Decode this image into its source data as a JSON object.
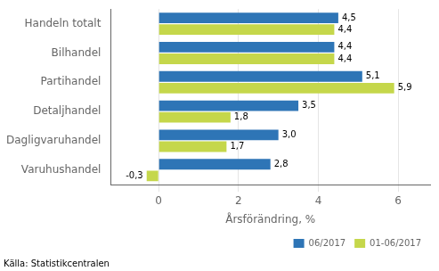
{
  "chart_data": {
    "type": "bar",
    "orientation": "horizontal",
    "categories": [
      "Varuhushandel",
      "Dagligvaruhandel",
      "Detaljhandel",
      "Partihandel",
      "Bilhandel",
      "Handeln totalt"
    ],
    "series": [
      {
        "name": "06/2017",
        "color": "#2E75B6",
        "values": [
          2.8,
          3.0,
          3.5,
          5.1,
          4.4,
          4.5
        ],
        "value_labels": [
          "2,8",
          "3,0",
          "3,5",
          "5,1",
          "4,4",
          "4,5"
        ]
      },
      {
        "name": "01-06/2017",
        "color": "#C5D74B",
        "values": [
          -0.3,
          1.7,
          1.8,
          5.9,
          4.4,
          4.4
        ],
        "value_labels": [
          "-0,3",
          "1,7",
          "1,8",
          "5,9",
          "4,4",
          "4,4"
        ]
      }
    ],
    "xlabel": "Årsförändring, %",
    "xlim": [
      -1.2,
      6.8
    ],
    "xticks": [
      0,
      2,
      4,
      6
    ],
    "grid": true,
    "legend": "lower right",
    "data_labels": true,
    "source": "Källa: Statistikcentralen"
  }
}
